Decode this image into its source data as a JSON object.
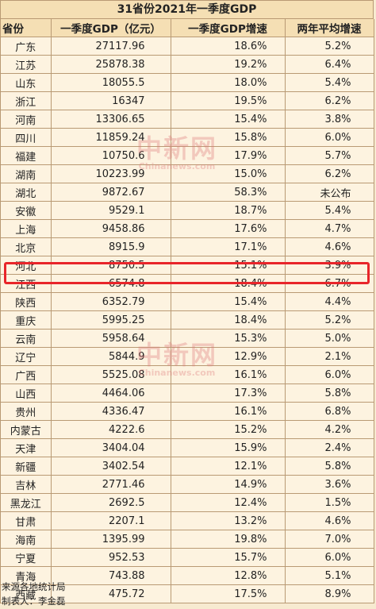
{
  "title": "31省份2021年一季度GDP",
  "columns": [
    "省份",
    "一季度GDP（亿元）",
    "一季度GDP增速",
    "两年平均增速"
  ],
  "rows": [
    [
      "广东",
      "27117.96",
      "18.6%",
      "5.2%"
    ],
    [
      "江苏",
      "25878.38",
      "19.2%",
      "6.4%"
    ],
    [
      "山东",
      "18055.5",
      "18.0%",
      "5.4%"
    ],
    [
      "浙江",
      "16347",
      "19.5%",
      "6.2%"
    ],
    [
      "河南",
      "13306.65",
      "15.4%",
      "3.8%"
    ],
    [
      "四川",
      "11859.24",
      "15.8%",
      "6.0%"
    ],
    [
      "福建",
      "10750.6",
      "17.9%",
      "5.7%"
    ],
    [
      "湖南",
      "10223.99",
      "15.0%",
      "6.2%"
    ],
    [
      "湖北",
      "9872.67",
      "58.3%",
      "未公布"
    ],
    [
      "安徽",
      "9529.1",
      "18.7%",
      "5.4%"
    ],
    [
      "上海",
      "9458.86",
      "17.6%",
      "4.7%"
    ],
    [
      "北京",
      "8915.9",
      "17.1%",
      "4.6%"
    ],
    [
      "河北",
      "8750.5",
      "15.1%",
      "3.9%"
    ],
    [
      "江西",
      "6574.8",
      "18.4%",
      "6.7%"
    ],
    [
      "陕西",
      "6352.79",
      "15.4%",
      "4.4%"
    ],
    [
      "重庆",
      "5995.25",
      "18.4%",
      "5.2%"
    ],
    [
      "云南",
      "5958.64",
      "15.3%",
      "5.0%"
    ],
    [
      "辽宁",
      "5844.9",
      "12.9%",
      "2.1%"
    ],
    [
      "广西",
      "5525.08",
      "16.1%",
      "6.0%"
    ],
    [
      "山西",
      "4464.06",
      "17.3%",
      "5.8%"
    ],
    [
      "贵州",
      "4336.47",
      "16.1%",
      "6.8%"
    ],
    [
      "内蒙古",
      "4222.6",
      "15.2%",
      "4.2%"
    ],
    [
      "天津",
      "3404.04",
      "15.9%",
      "2.4%"
    ],
    [
      "新疆",
      "3402.54",
      "12.1%",
      "5.8%"
    ],
    [
      "吉林",
      "2771.46",
      "14.9%",
      "3.6%"
    ],
    [
      "黑龙江",
      "2692.5",
      "12.4%",
      "1.5%"
    ],
    [
      "甘肃",
      "2207.1",
      "13.2%",
      "4.6%"
    ],
    [
      "海南",
      "1395.99",
      "19.8%",
      "7.0%"
    ],
    [
      "宁夏",
      "952.53",
      "15.7%",
      "6.0%"
    ],
    [
      "青海",
      "743.88",
      "12.8%",
      "5.1%"
    ],
    [
      "西藏",
      "475.72",
      "17.5%",
      "8.9%"
    ]
  ],
  "highlighted_row": "江西",
  "highlight_color": "#e8252a",
  "footer": {
    "source": "来源各地统计局",
    "maker": "制表人：李金磊"
  },
  "watermark": {
    "text": "中新网",
    "subtext": "Chinanews.com"
  }
}
